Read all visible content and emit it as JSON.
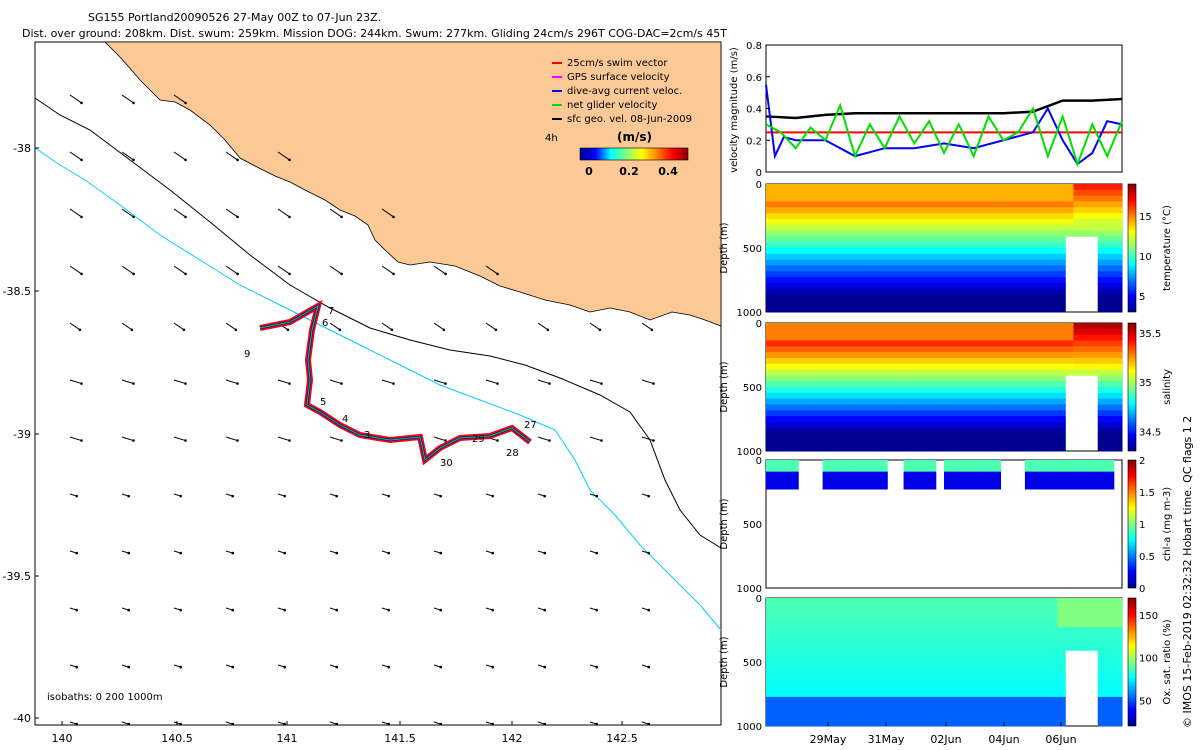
{
  "header": {
    "line1": "SG155 Portland20090526 27-May 00Z to 07-Jun 23Z.",
    "line2": "Dist. over ground: 208km. Dist. swum: 259km. Mission DOG: 244km. Swum: 277km. Gliding 24cm/s 296T COG-DAC=2cm/s 45T"
  },
  "colors": {
    "land": "#fbc896",
    "swim_vector": "#ff0000",
    "gps_surface_velocity": "#ff00ff",
    "dive_avg_current": "#0000ff",
    "net_glider_velocity": "#00e000",
    "sfc_geo_vel": "#000000",
    "isobath_200": "#000000",
    "isobath_1000": "#00d0ff"
  },
  "map": {
    "legend": [
      {
        "label": "25cm/s swim vector",
        "color": "#ff0000"
      },
      {
        "label": "GPS surface velocity",
        "color": "#ff00ff"
      },
      {
        "label": "dive-avg current veloc.",
        "color": "#0000ff"
      },
      {
        "label": "net glider velocity",
        "color": "#00e000"
      },
      {
        "label": "sfc geo. vel. 08-Jun-2009",
        "color": "#000000"
      }
    ],
    "interval_label": "4h",
    "colorbar_units": "(m/s)",
    "colorbar_ticks": [
      "0",
      "0.2",
      "0.4"
    ],
    "isobaths_label": "isobaths: 0   200   1000m",
    "day_labels": [
      "7",
      "6",
      "9",
      "5",
      "4",
      "3",
      "27",
      "29",
      "28",
      "30"
    ]
  },
  "chart_data": [
    {
      "type": "line",
      "panel": "velocity",
      "ylabel": "velocity magnitude (m/s)",
      "ylim": [
        0,
        0.8
      ],
      "yticks": [
        "0",
        "0.2",
        "0.4",
        "0.6",
        "0.8"
      ],
      "xlim": [
        0,
        12
      ],
      "series": [
        {
          "color": "#000000",
          "x": [
            0,
            1,
            2,
            3,
            4,
            5,
            6,
            7,
            8,
            9,
            10,
            11,
            12
          ],
          "values": [
            0.35,
            0.34,
            0.36,
            0.37,
            0.37,
            0.37,
            0.37,
            0.37,
            0.37,
            0.38,
            0.45,
            0.45,
            0.46
          ]
        },
        {
          "color": "#ff0000",
          "x": [
            0,
            12
          ],
          "values": [
            0.25,
            0.25
          ]
        },
        {
          "color": "#0000ff",
          "x": [
            0,
            0.3,
            0.6,
            1,
            2,
            3,
            4,
            5,
            6,
            7,
            8,
            9,
            9.5,
            10,
            10.5,
            11,
            11.5,
            12
          ],
          "values": [
            0.55,
            0.1,
            0.22,
            0.2,
            0.2,
            0.1,
            0.15,
            0.15,
            0.18,
            0.15,
            0.2,
            0.25,
            0.4,
            0.2,
            0.05,
            0.12,
            0.32,
            0.3
          ]
        },
        {
          "color": "#00e000",
          "x": [
            0,
            0.5,
            1,
            1.5,
            2,
            2.5,
            3,
            3.5,
            4,
            4.5,
            5,
            5.5,
            6,
            6.5,
            7,
            7.5,
            8,
            8.5,
            9,
            9.5,
            10,
            10.5,
            11,
            11.5,
            12
          ],
          "values": [
            0.3,
            0.25,
            0.15,
            0.28,
            0.2,
            0.42,
            0.1,
            0.3,
            0.15,
            0.35,
            0.18,
            0.32,
            0.12,
            0.3,
            0.1,
            0.35,
            0.2,
            0.25,
            0.4,
            0.1,
            0.35,
            0.05,
            0.3,
            0.1,
            0.32
          ]
        }
      ]
    },
    {
      "type": "heatmap",
      "panel": "temperature",
      "ylabel": "Depth (m)",
      "yticks": [
        "0",
        "500",
        "1000"
      ],
      "colorbar_label": "temperature (°C)",
      "colorbar_ticks": [
        "5",
        "10",
        "15"
      ],
      "range": [
        3,
        19
      ]
    },
    {
      "type": "heatmap",
      "panel": "salinity",
      "ylabel": "Depth (m)",
      "yticks": [
        "0",
        "500",
        "1000"
      ],
      "colorbar_label": "salinity",
      "colorbar_ticks": [
        "34.5",
        "35",
        "35.5"
      ],
      "range": [
        34.3,
        35.6
      ]
    },
    {
      "type": "heatmap",
      "panel": "chl-a",
      "ylabel": "Depth (m)",
      "yticks": [
        "0",
        "500",
        "1000"
      ],
      "colorbar_label": "chl-a (mg m-3)",
      "colorbar_ticks": [
        "0",
        "0.5",
        "1",
        "1.5",
        "2"
      ],
      "range": [
        0,
        2
      ]
    },
    {
      "type": "heatmap",
      "panel": "oxygen",
      "ylabel": "Depth (m)",
      "yticks": [
        "0",
        "500",
        "1000"
      ],
      "colorbar_label": "Ox. sat. ratio (%)",
      "colorbar_ticks": [
        "50",
        "100",
        "150"
      ],
      "range": [
        20,
        170
      ],
      "xticks": [
        "29May",
        "31May",
        "02Jun",
        "04Jun",
        "06Jun"
      ]
    }
  ],
  "map_axes": {
    "xticks": [
      "140",
      "140.5",
      "141",
      "141.5",
      "142",
      "142.5"
    ],
    "yticks": [
      "-38",
      "-38.5",
      "-39",
      "-39.5",
      "-40"
    ]
  },
  "footer": {
    "side_text": "© IMOS 15-Feb-2019 02:32:32 Hobart time. QC flags 1  2"
  }
}
